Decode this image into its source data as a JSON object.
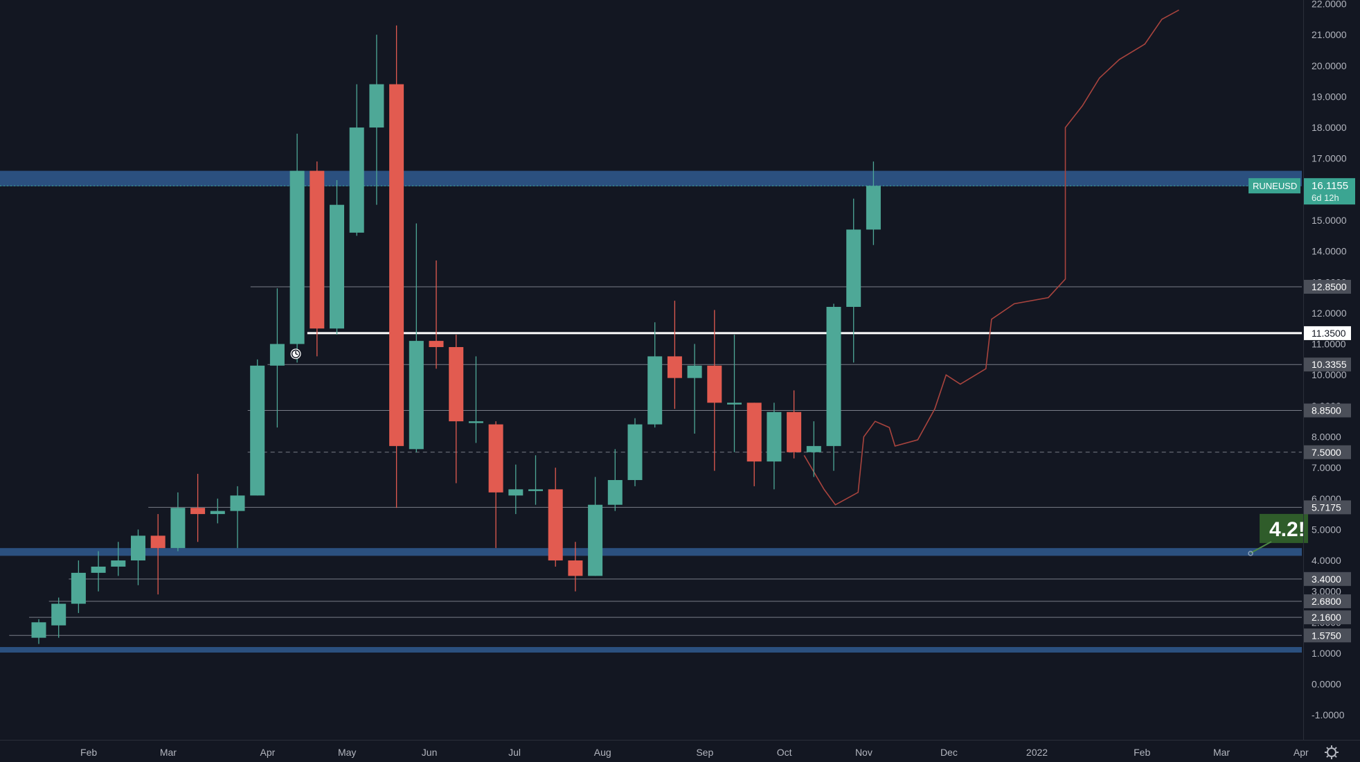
{
  "colors": {
    "background": "#131722",
    "up": "#4ea897",
    "down": "#e25b50",
    "zone": "#2f5689",
    "level_line": "#7a7e88",
    "key_level": "#ffffff",
    "path": "#a9443e",
    "axis_text": "#b2b5be",
    "label_bg": "#4b4f59",
    "ticker_bg": "#3ba592",
    "callout_bg": "#2f5c2a"
  },
  "ticker": {
    "symbol": "RUNEUSD",
    "price": "16.1155",
    "countdown": "6d 12h",
    "price_value": 16.1155
  },
  "callout": {
    "text": "4.2!",
    "value": 4.25
  },
  "icons": {
    "alarm": "alarm-clock-icon",
    "settings": "gear-icon"
  },
  "chart_data": {
    "type": "candlestick",
    "interval": "weekly",
    "y_tick_labels": [
      "22.0000",
      "21.0000",
      "20.0000",
      "19.0000",
      "18.0000",
      "17.0000",
      "15.0000",
      "14.0000",
      "13.0000",
      "12.0000",
      "11.0000",
      "10.0000",
      "9.0000",
      "8.0000",
      "7.0000",
      "6.0000",
      "5.0000",
      "4.0000",
      "3.0000",
      "2.0000",
      "1.0000",
      "0.0000",
      "-1.0000"
    ],
    "x_tick_labels": [
      {
        "label": "Feb",
        "date": "2021-02-01"
      },
      {
        "label": "Mar",
        "date": "2021-03-01"
      },
      {
        "label": "Apr",
        "date": "2021-04-05"
      },
      {
        "label": "May",
        "date": "2021-05-03"
      },
      {
        "label": "Jun",
        "date": "2021-06-01"
      },
      {
        "label": "Jul",
        "date": "2021-07-01"
      },
      {
        "label": "Aug",
        "date": "2021-08-01"
      },
      {
        "label": "Sep",
        "date": "2021-09-06"
      },
      {
        "label": "Oct",
        "date": "2021-10-04"
      },
      {
        "label": "Nov",
        "date": "2021-11-01"
      },
      {
        "label": "Dec",
        "date": "2021-12-01"
      },
      {
        "label": "2022",
        "date": "2022-01-01"
      },
      {
        "label": "Feb",
        "date": "2022-02-07"
      },
      {
        "label": "Mar",
        "date": "2022-03-07"
      },
      {
        "label": "Apr",
        "date": "2022-04-04"
      }
    ],
    "price_labels": [
      {
        "text": "12.8500",
        "value": 12.85
      },
      {
        "text": "11.3500",
        "value": 11.35,
        "highlight": true
      },
      {
        "text": "10.3355",
        "value": 10.3355
      },
      {
        "text": "8.8500",
        "value": 8.85
      },
      {
        "text": "7.5000",
        "value": 7.5
      },
      {
        "text": "5.7175",
        "value": 5.7175
      },
      {
        "text": "3.4000",
        "value": 3.4
      },
      {
        "text": "2.6800",
        "value": 2.68
      },
      {
        "text": "2.1600",
        "value": 2.16
      },
      {
        "text": "1.5750",
        "value": 1.575
      }
    ],
    "zones": [
      {
        "from": 16.1,
        "to": 16.6
      },
      {
        "from": 4.15,
        "to": 4.4
      },
      {
        "from": 1.05,
        "to": 1.2
      }
    ],
    "levels": [
      {
        "value": 12.85,
        "start": "2021-03-30",
        "style": "solid"
      },
      {
        "value": 11.35,
        "start": "2021-04-19",
        "style": "key"
      },
      {
        "value": 10.3355,
        "start": "2021-04-05",
        "style": "solid"
      },
      {
        "value": 8.85,
        "start": "2021-03-29",
        "style": "solid"
      },
      {
        "value": 7.5,
        "start": "2021-03-29",
        "style": "dashed"
      },
      {
        "value": 5.7175,
        "start": "2021-02-22",
        "style": "solid"
      },
      {
        "value": 3.4,
        "start": "2021-01-25",
        "style": "solid"
      },
      {
        "value": 2.68,
        "start": "2021-01-18",
        "style": "solid"
      },
      {
        "value": 2.16,
        "start": "2021-01-11",
        "style": "solid"
      },
      {
        "value": 1.575,
        "start": "2021-01-04",
        "style": "solid"
      }
    ],
    "candles": [
      {
        "t": "2021-01-11",
        "o": 1.5,
        "h": 2.1,
        "l": 1.3,
        "c": 2.0
      },
      {
        "t": "2021-01-18",
        "o": 1.9,
        "h": 2.8,
        "l": 1.5,
        "c": 2.6
      },
      {
        "t": "2021-01-25",
        "o": 2.6,
        "h": 4.0,
        "l": 2.3,
        "c": 3.6
      },
      {
        "t": "2021-02-01",
        "o": 3.6,
        "h": 4.3,
        "l": 3.0,
        "c": 3.8
      },
      {
        "t": "2021-02-08",
        "o": 3.8,
        "h": 4.6,
        "l": 3.5,
        "c": 4.0
      },
      {
        "t": "2021-02-15",
        "o": 4.0,
        "h": 5.0,
        "l": 3.2,
        "c": 4.8
      },
      {
        "t": "2021-02-22",
        "o": 4.8,
        "h": 5.5,
        "l": 2.9,
        "c": 4.4
      },
      {
        "t": "2021-03-01",
        "o": 4.4,
        "h": 6.2,
        "l": 4.3,
        "c": 5.7
      },
      {
        "t": "2021-03-08",
        "o": 5.7,
        "h": 6.8,
        "l": 4.6,
        "c": 5.5
      },
      {
        "t": "2021-03-15",
        "o": 5.5,
        "h": 6.0,
        "l": 5.2,
        "c": 5.6
      },
      {
        "t": "2021-03-22",
        "o": 5.6,
        "h": 6.4,
        "l": 4.4,
        "c": 6.1
      },
      {
        "t": "2021-03-29",
        "o": 6.1,
        "h": 10.5,
        "l": 6.1,
        "c": 10.3
      },
      {
        "t": "2021-04-05",
        "o": 10.3,
        "h": 12.8,
        "l": 8.3,
        "c": 11.0
      },
      {
        "t": "2021-04-12",
        "o": 11.0,
        "h": 17.8,
        "l": 10.4,
        "c": 16.6
      },
      {
        "t": "2021-04-19",
        "o": 16.6,
        "h": 16.9,
        "l": 10.6,
        "c": 11.5
      },
      {
        "t": "2021-04-26",
        "o": 11.5,
        "h": 16.3,
        "l": 11.3,
        "c": 15.5
      },
      {
        "t": "2021-05-03",
        "o": 14.6,
        "h": 19.4,
        "l": 14.5,
        "c": 18.0
      },
      {
        "t": "2021-05-10",
        "o": 18.0,
        "h": 21.0,
        "l": 15.5,
        "c": 19.4
      },
      {
        "t": "2021-05-17",
        "o": 19.4,
        "h": 21.3,
        "l": 5.7,
        "c": 7.7
      },
      {
        "t": "2021-05-24",
        "o": 7.6,
        "h": 14.9,
        "l": 7.5,
        "c": 11.1
      },
      {
        "t": "2021-05-31",
        "o": 11.1,
        "h": 13.7,
        "l": 10.2,
        "c": 10.9
      },
      {
        "t": "2021-06-07",
        "o": 10.9,
        "h": 11.3,
        "l": 6.5,
        "c": 8.5
      },
      {
        "t": "2021-06-14",
        "o": 8.5,
        "h": 10.6,
        "l": 7.8,
        "c": 8.5
      },
      {
        "t": "2021-06-21",
        "o": 8.4,
        "h": 8.5,
        "l": 4.4,
        "c": 6.2
      },
      {
        "t": "2021-06-28",
        "o": 6.1,
        "h": 7.1,
        "l": 5.5,
        "c": 6.3
      },
      {
        "t": "2021-07-05",
        "o": 6.3,
        "h": 7.4,
        "l": 5.8,
        "c": 6.3
      },
      {
        "t": "2021-07-12",
        "o": 6.3,
        "h": 7.0,
        "l": 3.8,
        "c": 4.0
      },
      {
        "t": "2021-07-19",
        "o": 4.0,
        "h": 4.6,
        "l": 3.0,
        "c": 3.5
      },
      {
        "t": "2021-07-26",
        "o": 3.5,
        "h": 6.7,
        "l": 3.5,
        "c": 5.8
      },
      {
        "t": "2021-08-02",
        "o": 5.8,
        "h": 7.6,
        "l": 5.6,
        "c": 6.6
      },
      {
        "t": "2021-08-09",
        "o": 6.6,
        "h": 8.6,
        "l": 6.4,
        "c": 8.4
      },
      {
        "t": "2021-08-16",
        "o": 8.4,
        "h": 11.7,
        "l": 8.3,
        "c": 10.6
      },
      {
        "t": "2021-08-23",
        "o": 10.6,
        "h": 12.4,
        "l": 8.9,
        "c": 9.9
      },
      {
        "t": "2021-08-30",
        "o": 9.9,
        "h": 11.0,
        "l": 8.1,
        "c": 10.3
      },
      {
        "t": "2021-09-06",
        "o": 10.3,
        "h": 12.1,
        "l": 6.9,
        "c": 9.1
      },
      {
        "t": "2021-09-13",
        "o": 9.1,
        "h": 11.3,
        "l": 7.5,
        "c": 9.1
      },
      {
        "t": "2021-09-20",
        "o": 9.1,
        "h": 9.1,
        "l": 6.4,
        "c": 7.2
      },
      {
        "t": "2021-09-27",
        "o": 7.2,
        "h": 9.1,
        "l": 6.3,
        "c": 8.8
      },
      {
        "t": "2021-10-04",
        "o": 8.8,
        "h": 9.5,
        "l": 7.3,
        "c": 7.5
      },
      {
        "t": "2021-10-11",
        "o": 7.5,
        "h": 8.5,
        "l": 6.7,
        "c": 7.7
      },
      {
        "t": "2021-10-18",
        "o": 7.7,
        "h": 12.3,
        "l": 6.9,
        "c": 12.2
      },
      {
        "t": "2021-10-25",
        "o": 12.2,
        "h": 15.7,
        "l": 10.4,
        "c": 14.7
      },
      {
        "t": "2021-11-01",
        "o": 14.7,
        "h": 16.9,
        "l": 14.2,
        "c": 16.1155
      }
    ],
    "projection_path": [
      [
        "2021-10-11",
        7.4
      ],
      [
        "2021-10-18",
        6.3
      ],
      [
        "2021-10-22",
        5.8
      ],
      [
        "2021-10-30",
        6.2
      ],
      [
        "2021-11-01",
        8.0
      ],
      [
        "2021-11-05",
        8.5
      ],
      [
        "2021-11-10",
        8.3
      ],
      [
        "2021-11-12",
        7.7
      ],
      [
        "2021-11-20",
        7.9
      ],
      [
        "2021-11-26",
        8.9
      ],
      [
        "2021-11-30",
        10.0
      ],
      [
        "2021-12-05",
        9.7
      ],
      [
        "2021-12-14",
        10.2
      ],
      [
        "2021-12-16",
        11.8
      ],
      [
        "2021-12-24",
        12.3
      ],
      [
        "2022-01-05",
        12.5
      ],
      [
        "2022-01-11",
        13.1
      ],
      [
        "2022-01-11",
        18.0
      ],
      [
        "2022-01-17",
        18.7
      ],
      [
        "2022-01-23",
        19.6
      ],
      [
        "2022-01-30",
        20.2
      ],
      [
        "2022-02-08",
        20.7
      ],
      [
        "2022-02-14",
        21.5
      ],
      [
        "2022-02-20",
        21.8
      ]
    ]
  }
}
